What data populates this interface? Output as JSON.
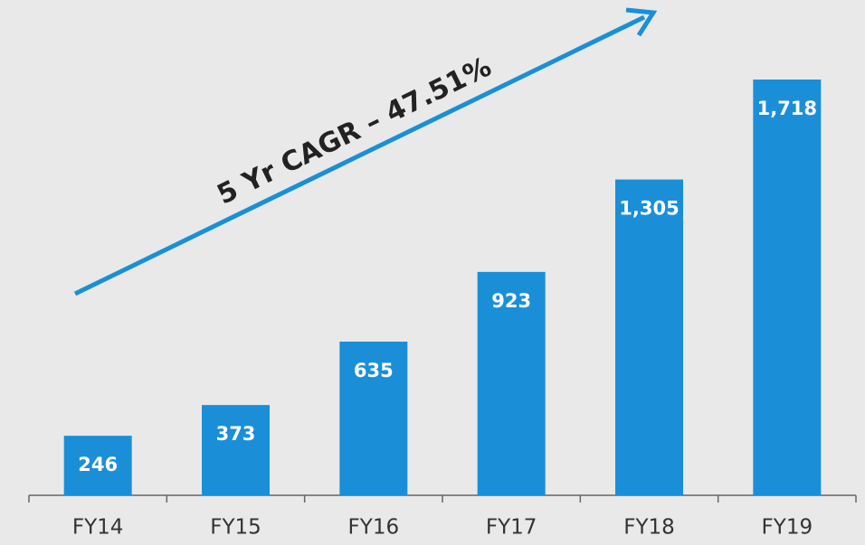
{
  "chart_data": {
    "type": "bar",
    "categories": [
      "FY14",
      "FY15",
      "FY16",
      "FY17",
      "FY18",
      "FY19"
    ],
    "values": [
      246,
      373,
      635,
      923,
      1305,
      1718
    ],
    "value_labels": [
      "246",
      "373",
      "635",
      "923",
      "1,305",
      "1,718"
    ],
    "color": "#1a8fd8",
    "annotation": "5 Yr CAGR – 47.51%"
  }
}
